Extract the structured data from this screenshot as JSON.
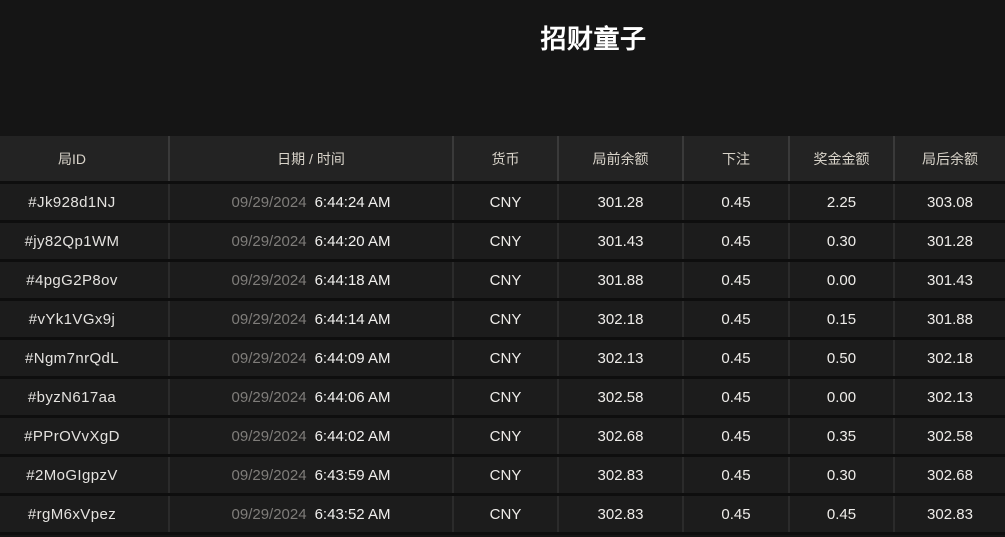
{
  "page": {
    "title": "招财童子"
  },
  "table": {
    "columns": [
      {
        "key": "id",
        "label": "局ID"
      },
      {
        "key": "datetime",
        "label": "日期 / 时间"
      },
      {
        "key": "currency",
        "label": "货币"
      },
      {
        "key": "balance_before",
        "label": "局前余额"
      },
      {
        "key": "bet",
        "label": "下注"
      },
      {
        "key": "prize",
        "label": "奖金金额"
      },
      {
        "key": "balance_after",
        "label": "局后余额"
      }
    ],
    "rows": [
      {
        "id": "#Jk928d1NJ",
        "date": "09/29/2024",
        "time": "6:44:24 AM",
        "currency": "CNY",
        "balance_before": "301.28",
        "bet": "0.45",
        "prize": "2.25",
        "balance_after": "303.08"
      },
      {
        "id": "#jy82Qp1WM",
        "date": "09/29/2024",
        "time": "6:44:20 AM",
        "currency": "CNY",
        "balance_before": "301.43",
        "bet": "0.45",
        "prize": "0.30",
        "balance_after": "301.28"
      },
      {
        "id": "#4pgG2P8ov",
        "date": "09/29/2024",
        "time": "6:44:18 AM",
        "currency": "CNY",
        "balance_before": "301.88",
        "bet": "0.45",
        "prize": "0.00",
        "balance_after": "301.43"
      },
      {
        "id": "#vYk1VGx9j",
        "date": "09/29/2024",
        "time": "6:44:14 AM",
        "currency": "CNY",
        "balance_before": "302.18",
        "bet": "0.45",
        "prize": "0.15",
        "balance_after": "301.88"
      },
      {
        "id": "#Ngm7nrQdL",
        "date": "09/29/2024",
        "time": "6:44:09 AM",
        "currency": "CNY",
        "balance_before": "302.13",
        "bet": "0.45",
        "prize": "0.50",
        "balance_after": "302.18"
      },
      {
        "id": "#byzN617aa",
        "date": "09/29/2024",
        "time": "6:44:06 AM",
        "currency": "CNY",
        "balance_before": "302.58",
        "bet": "0.45",
        "prize": "0.00",
        "balance_after": "302.13"
      },
      {
        "id": "#PPrOVvXgD",
        "date": "09/29/2024",
        "time": "6:44:02 AM",
        "currency": "CNY",
        "balance_before": "302.68",
        "bet": "0.45",
        "prize": "0.35",
        "balance_after": "302.58"
      },
      {
        "id": "#2MoGIgpzV",
        "date": "09/29/2024",
        "time": "6:43:59 AM",
        "currency": "CNY",
        "balance_before": "302.83",
        "bet": "0.45",
        "prize": "0.30",
        "balance_after": "302.68"
      },
      {
        "id": "#rgM6xVpez",
        "date": "09/29/2024",
        "time": "6:43:52 AM",
        "currency": "CNY",
        "balance_before": "302.83",
        "bet": "0.45",
        "prize": "0.45",
        "balance_after": "302.83"
      }
    ]
  },
  "colors": {
    "page_background": "#151515",
    "header_background": "#232323",
    "row_background": "#1c1c1c",
    "separator": "#0e0e0e",
    "header_text": "#d8d3c9",
    "date_muted_text": "#7f7d7a",
    "value_text": "#efedea",
    "title_text": "#ffffff"
  }
}
